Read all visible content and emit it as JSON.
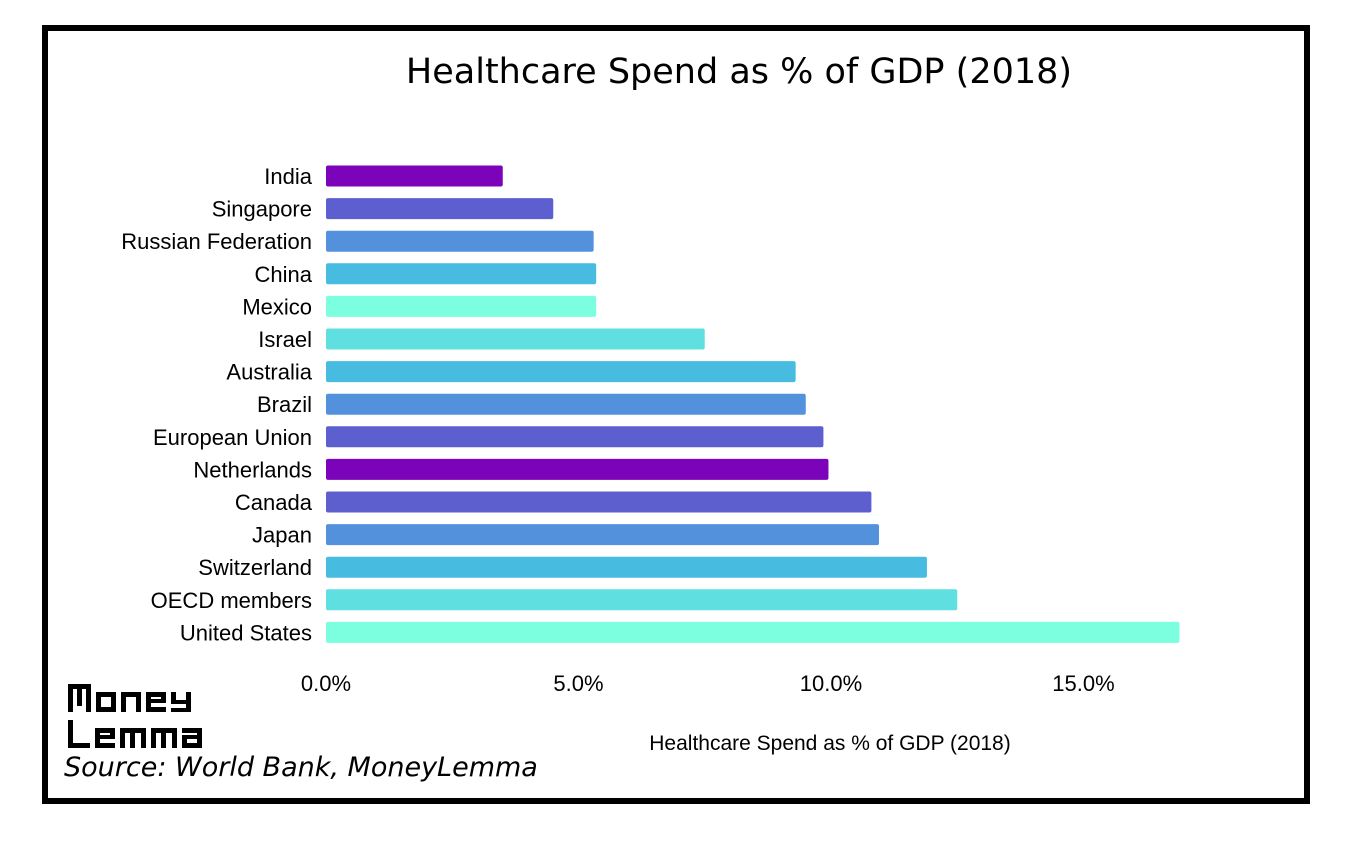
{
  "chart_data": {
    "type": "bar",
    "orientation": "horizontal",
    "title": "Healthcare Spend as % of GDP (2018)",
    "xlabel": "Healthcare Spend as % of GDP (2018)",
    "ylabel": "",
    "xlim": [
      0,
      17.5
    ],
    "xticks": [
      0,
      5,
      10,
      15
    ],
    "xtick_labels": [
      "0.0%",
      "5.0%",
      "10.0%",
      "15.0%"
    ],
    "grid": false,
    "legend": "none",
    "categories": [
      "India",
      "Singapore",
      "Russian Federation",
      "China",
      "Mexico",
      "Israel",
      "Australia",
      "Brazil",
      "European Union",
      "Netherlands",
      "Canada",
      "Japan",
      "Switzerland",
      "OECD members",
      "United States"
    ],
    "values": [
      3.5,
      4.5,
      5.3,
      5.35,
      5.35,
      7.5,
      9.3,
      9.5,
      9.85,
      9.95,
      10.8,
      10.95,
      11.9,
      12.5,
      16.9
    ],
    "colors": [
      "#7B03BA",
      "#5E5FCF",
      "#5491DC",
      "#48BCE0",
      "#7CFFDE",
      "#5FDFE0",
      "#48BCE0",
      "#5491DC",
      "#5E5FCF",
      "#7B03BA",
      "#5E5FCF",
      "#5491DC",
      "#48BCE0",
      "#5FDFE0",
      "#7CFFDE"
    ]
  },
  "logo": {
    "text": "Money Lemma"
  },
  "source": "Source: World Bank, MoneyLemma"
}
